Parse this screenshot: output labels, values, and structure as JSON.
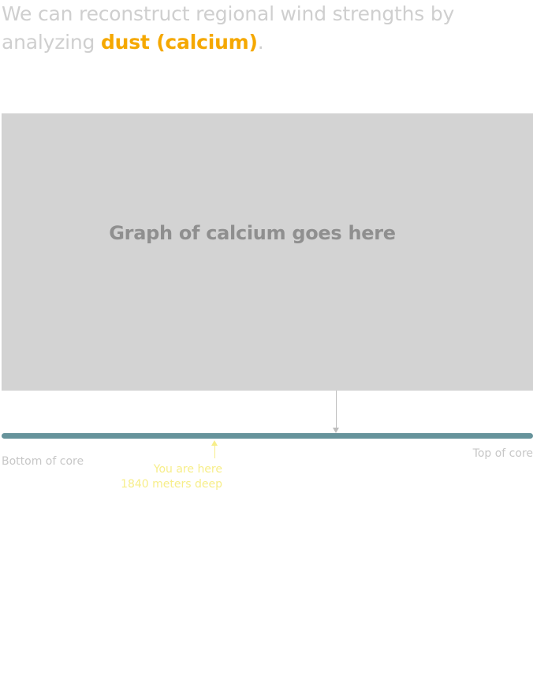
{
  "headline": {
    "prefix": "We can reconstruct regional wind strengths by analyzing ",
    "highlight": "dust (calcium)",
    "suffix": "."
  },
  "graph": {
    "placeholder_label": "Graph of calcium goes here"
  },
  "core": {
    "bottom_label": "Bottom of core",
    "top_label": "Top of core",
    "marker": {
      "line1": "You are here",
      "line2": "1840 meters deep"
    }
  },
  "colors": {
    "highlight": "#f5a800",
    "core_bar": "#66939b",
    "placeholder_bg": "#d3d3d3",
    "marker": "#f7ee8a",
    "muted_text": "#cfcfcf"
  },
  "icons": {
    "graph_pointer": "down-arrow-icon",
    "position_marker": "up-arrow-icon"
  }
}
